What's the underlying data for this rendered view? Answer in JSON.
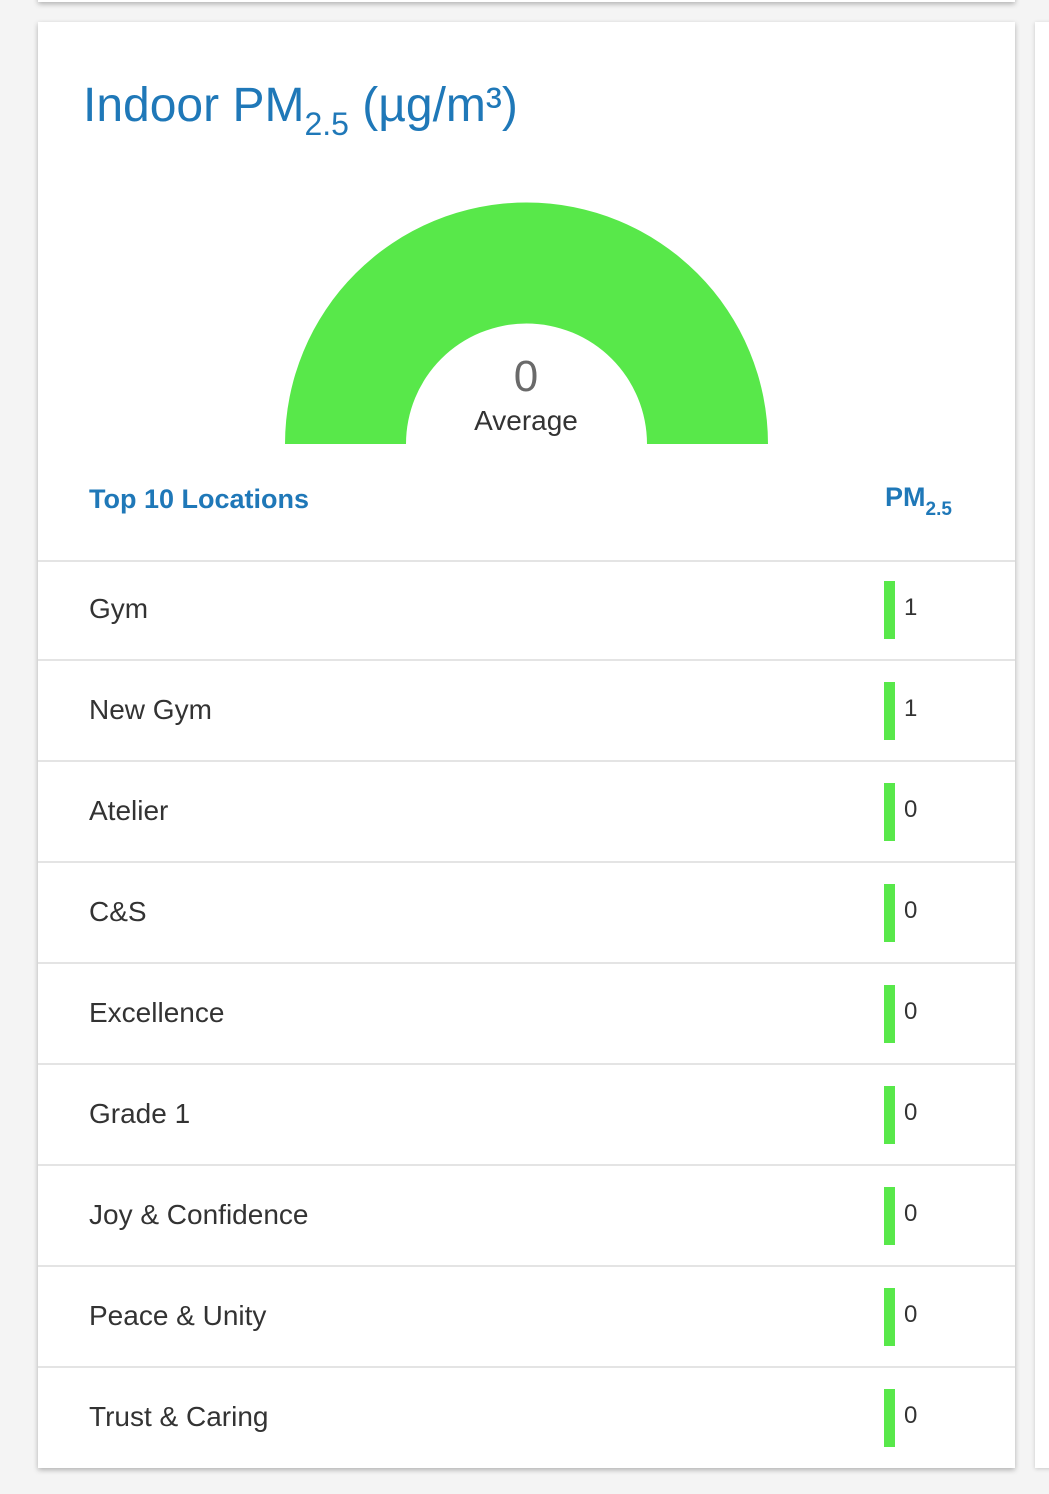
{
  "card": {
    "title_main": "Indoor PM",
    "title_sub": "2.5",
    "title_unit": " (µg/m³)"
  },
  "gauge": {
    "value": "0",
    "label": "Average",
    "level": 0,
    "color": "#58e84a"
  },
  "list": {
    "header_locations": "Top 10 Locations",
    "header_metric_main": "PM",
    "header_metric_sub": "2.5",
    "bar_color": "#58e84a",
    "rows": [
      {
        "name": "Gym",
        "value": "1"
      },
      {
        "name": "New Gym",
        "value": "1"
      },
      {
        "name": "Atelier",
        "value": "0"
      },
      {
        "name": "C&S",
        "value": "0"
      },
      {
        "name": "Excellence",
        "value": "0"
      },
      {
        "name": "Grade 1",
        "value": "0"
      },
      {
        "name": "Joy & Confidence",
        "value": "0"
      },
      {
        "name": "Peace & Unity",
        "value": "0"
      },
      {
        "name": "Trust & Caring",
        "value": "0"
      }
    ]
  },
  "colors": {
    "accent": "#1f78b8",
    "good": "#58e84a",
    "text": "#333333"
  }
}
